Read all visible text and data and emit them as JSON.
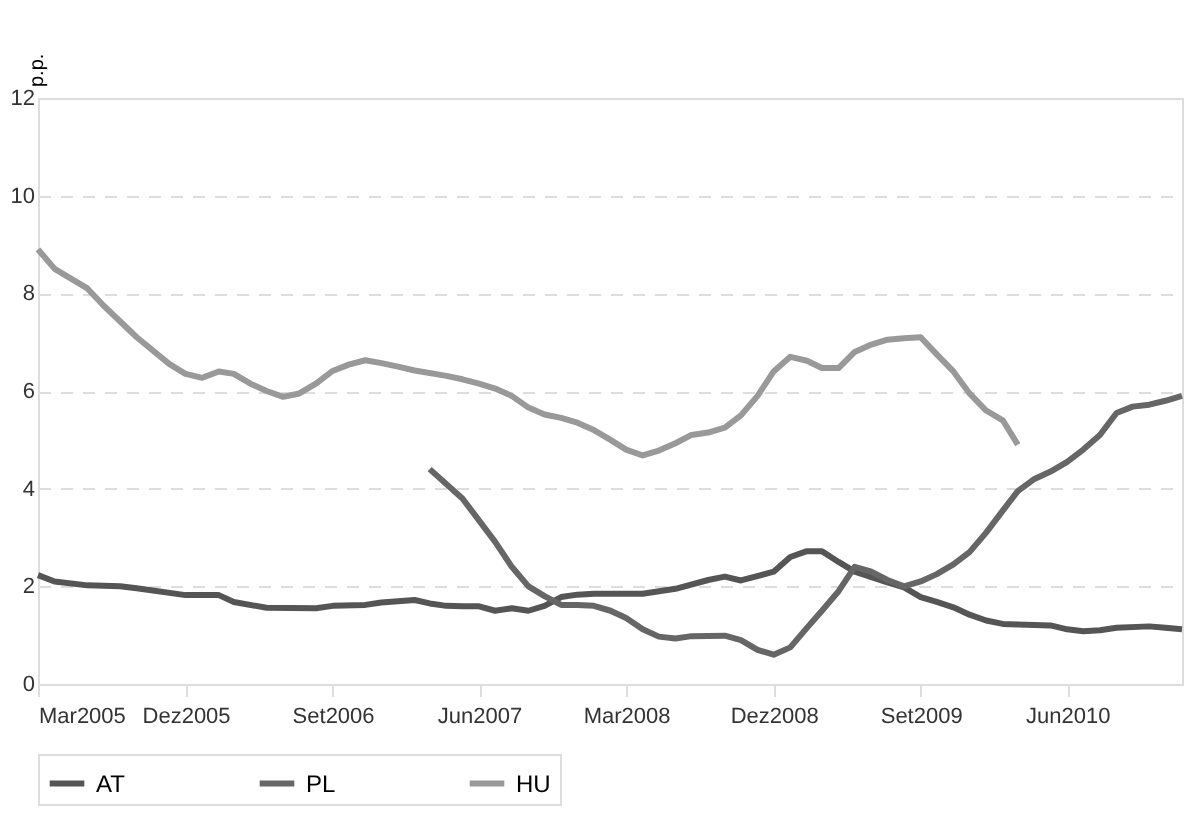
{
  "chart_data": {
    "type": "line",
    "ylabel": "p.p.",
    "x": [
      "2005-03",
      "2005-04",
      "2005-06",
      "2005-08",
      "2005-09",
      "2005-12",
      "2006-02",
      "2006-03",
      "2006-05",
      "2006-08",
      "2006-09",
      "2006-11",
      "2006-12",
      "2007-02",
      "2007-03",
      "2007-04",
      "2007-05",
      "2007-06",
      "2007-07",
      "2007-08",
      "2007-09",
      "2007-10",
      "2007-11",
      "2007-12",
      "2008-01",
      "2008-04",
      "2008-06",
      "2008-08",
      "2008-09",
      "2008-10",
      "2008-12",
      "2009-01",
      "2009-02",
      "2009-03",
      "2009-04",
      "2009-05",
      "2009-07",
      "2009-08",
      "2009-09",
      "2009-10",
      "2009-11",
      "2009-12",
      "2010-01",
      "2010-02",
      "2010-03",
      "2010-05",
      "2010-06",
      "2010-07",
      "2010-08",
      "2010-09",
      "2010-11",
      "2010-12",
      "2011-01"
    ],
    "series": [
      {
        "name": "AT",
        "color": "#555555",
        "values": [
          2.23,
          2.1,
          2.02,
          2.0,
          1.96,
          1.82,
          1.82,
          1.68,
          1.56,
          1.55,
          1.6,
          1.62,
          1.67,
          1.72,
          1.65,
          1.6,
          1.59,
          1.59,
          1.5,
          1.55,
          1.5,
          1.6,
          1.78,
          1.83,
          1.85,
          1.85,
          1.95,
          2.13,
          2.2,
          2.12,
          2.3,
          2.6,
          2.72,
          2.72,
          2.5,
          2.3,
          2.08,
          1.98,
          1.78,
          1.68,
          1.57,
          1.42,
          1.3,
          1.23,
          1.22,
          1.2,
          1.12,
          1.08,
          1.1,
          1.15,
          1.18,
          1.15,
          1.12
        ]
      },
      {
        "name": "PL",
        "color": "#666666",
        "x": [
          "2007-03",
          "2007-05",
          "2007-07",
          "2007-08",
          "2007-09",
          "2007-10",
          "2007-11",
          "2007-12",
          "2008-01",
          "2008-02",
          "2008-03",
          "2008-04",
          "2008-05",
          "2008-06",
          "2008-07",
          "2008-09",
          "2008-10",
          "2008-11",
          "2008-12",
          "2009-01",
          "2009-02",
          "2009-03",
          "2009-04",
          "2009-05",
          "2009-06",
          "2009-07",
          "2009-08",
          "2009-09",
          "2009-10",
          "2009-11",
          "2009-12",
          "2010-01",
          "2010-02",
          "2010-03",
          "2010-04",
          "2010-05",
          "2010-06",
          "2010-07",
          "2010-08",
          "2010-09",
          "2010-10",
          "2010-11",
          "2010-12",
          "2011-01"
        ],
        "values": [
          4.4,
          3.8,
          2.91,
          2.4,
          2.0,
          1.8,
          1.62,
          1.62,
          1.6,
          1.5,
          1.35,
          1.12,
          0.97,
          0.93,
          0.98,
          0.99,
          0.9,
          0.7,
          0.6,
          0.75,
          1.15,
          1.5,
          1.9,
          2.4,
          2.3,
          2.13,
          2.0,
          2.1,
          2.25,
          2.45,
          2.7,
          3.1,
          3.55,
          3.95,
          4.2,
          4.35,
          4.55,
          4.8,
          5.1,
          5.55,
          5.68,
          5.72,
          5.8,
          5.9
        ]
      },
      {
        "name": "HU",
        "color": "#999999",
        "x": [
          "2005-03",
          "2005-04",
          "2005-06",
          "2005-07",
          "2005-09",
          "2005-11",
          "2005-12",
          "2006-01",
          "2006-02",
          "2006-03",
          "2006-04",
          "2006-05",
          "2006-06",
          "2006-07",
          "2006-08",
          "2006-09",
          "2006-10",
          "2006-11",
          "2006-12",
          "2007-01",
          "2007-02",
          "2007-04",
          "2007-05",
          "2007-06",
          "2007-07",
          "2007-08",
          "2007-09",
          "2007-10",
          "2007-11",
          "2007-12",
          "2008-01",
          "2008-02",
          "2008-03",
          "2008-04",
          "2008-05",
          "2008-06",
          "2008-07",
          "2008-08",
          "2008-09",
          "2008-10",
          "2008-11",
          "2008-12",
          "2009-01",
          "2009-02",
          "2009-03",
          "2009-04",
          "2009-05",
          "2009-06",
          "2009-07",
          "2009-08",
          "2009-09",
          "2009-10",
          "2009-11",
          "2009-12",
          "2010-01",
          "2010-02",
          "2010-03"
        ],
        "values": [
          8.9,
          8.5,
          8.1,
          7.75,
          7.1,
          6.55,
          6.35,
          6.27,
          6.4,
          6.35,
          6.15,
          6.0,
          5.88,
          5.95,
          6.15,
          6.41,
          6.54,
          6.63,
          6.57,
          6.5,
          6.42,
          6.31,
          6.24,
          6.15,
          6.05,
          5.9,
          5.66,
          5.52,
          5.45,
          5.35,
          5.2,
          5.0,
          4.8,
          4.68,
          4.78,
          4.93,
          5.1,
          5.15,
          5.25,
          5.5,
          5.9,
          6.4,
          6.7,
          6.62,
          6.47,
          6.47,
          6.8,
          6.95,
          7.05,
          7.08,
          7.1,
          6.75,
          6.4,
          5.95,
          5.6,
          5.4,
          4.9
        ]
      }
    ],
    "xlim": [
      "2005-03",
      "2011-01"
    ],
    "xticks": [
      {
        "value": "2005-03",
        "label": "Mar2005"
      },
      {
        "value": "2005-12",
        "label": "Dez2005"
      },
      {
        "value": "2006-09",
        "label": "Set2006"
      },
      {
        "value": "2007-06",
        "label": "Jun2007"
      },
      {
        "value": "2008-03",
        "label": "Mar2008"
      },
      {
        "value": "2008-12",
        "label": "Dez2008"
      },
      {
        "value": "2009-09",
        "label": "Set2009"
      },
      {
        "value": "2010-06",
        "label": "Jun2010"
      }
    ],
    "ylim": [
      0,
      12
    ],
    "yticks": [
      0,
      2,
      4,
      6,
      8,
      10,
      12
    ],
    "grid": "y",
    "legend": "bottom",
    "marker": "none",
    "line_style": "solid"
  }
}
